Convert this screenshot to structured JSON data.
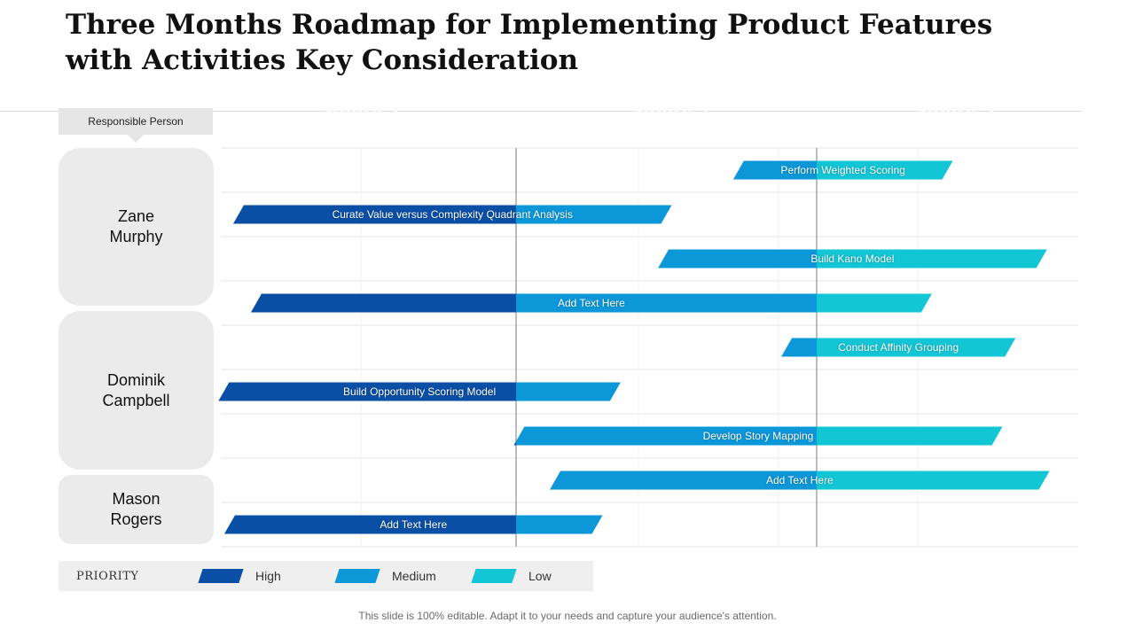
{
  "title_line1": "Three Months Roadmap for Implementing Product Features",
  "title_line2": "with Activities Key Consideration",
  "responsible_label": "Responsible Person",
  "months": [
    "Month 1",
    "Month 2",
    "Month 3"
  ],
  "people": [
    {
      "line1": "Zane",
      "line2": "Murphy"
    },
    {
      "line1": "Dominik",
      "line2": "Campbell"
    },
    {
      "line1": "Mason",
      "line2": "Rogers"
    }
  ],
  "tasks": [
    {
      "label": "Perform Weighted Scoring",
      "start_month": 1.74,
      "end_month": 2.5
    },
    {
      "label": "Curate Value versus Complexity Quadrant Analysis",
      "start_month": 0.06,
      "end_month": 1.5
    },
    {
      "label": "Build Kano Model",
      "start_month": 1.49,
      "end_month": 2.86
    },
    {
      "label": "Add Text Here",
      "start_month": 0.12,
      "end_month": 2.42
    },
    {
      "label": "Conduct Affinity Grouping",
      "start_month": 1.9,
      "end_month": 2.74
    },
    {
      "label": "Build Opportunity Scoring Model",
      "start_month": 0.01,
      "end_month": 1.33
    },
    {
      "label": "Develop Story Mapping",
      "start_month": 1.01,
      "end_month": 2.69
    },
    {
      "label": "Add Text Here",
      "start_month": 1.13,
      "end_month": 2.87
    },
    {
      "label": "Add Text Here",
      "start_month": 0.03,
      "end_month": 1.27
    }
  ],
  "legend": {
    "title": "PRIORITY",
    "items": [
      {
        "label": "High",
        "color": "#0a4fa6"
      },
      {
        "label": "Medium",
        "color": "#0c97d9"
      },
      {
        "label": "Low",
        "color": "#12c6d6"
      }
    ]
  },
  "colors": {
    "month1": "#0a4fa6",
    "month2": "#0c97d9",
    "month3": "#12c6d6"
  },
  "footer": "This slide is 100% editable. Adapt it to your needs and capture your audience's attention."
}
